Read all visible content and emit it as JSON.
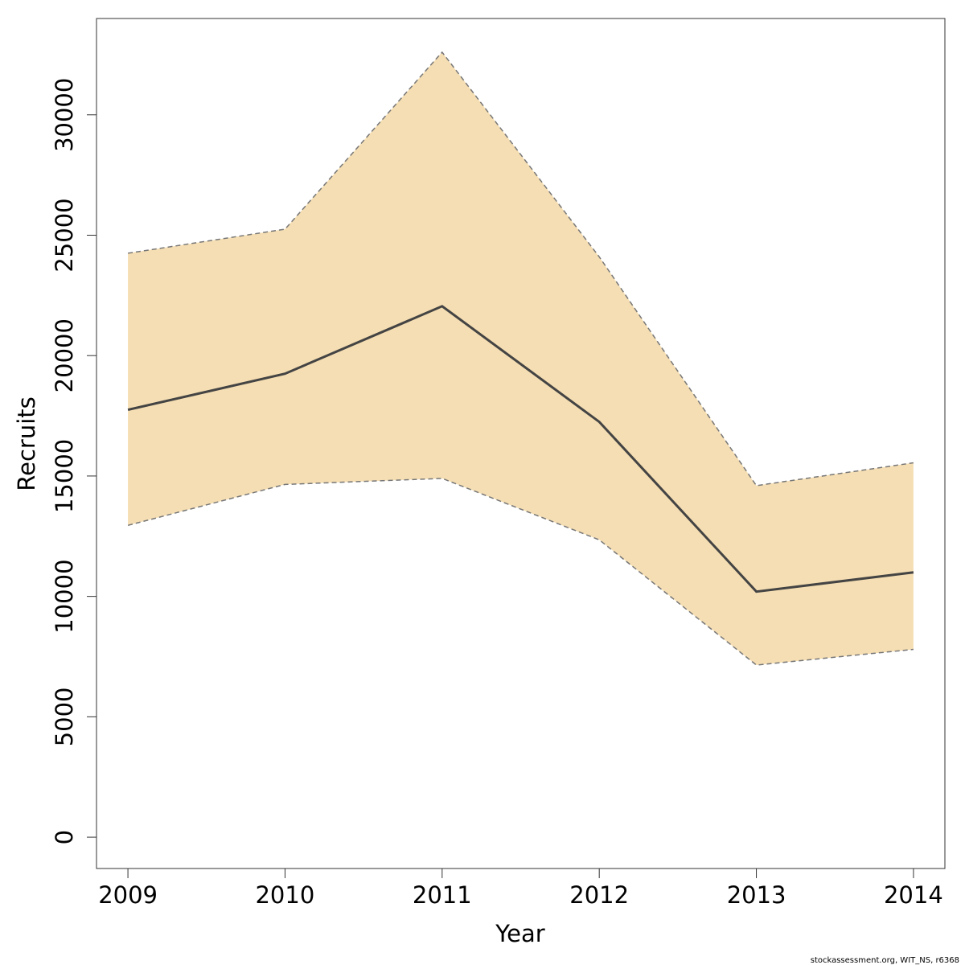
{
  "chart_data": {
    "type": "line",
    "title": "",
    "xlabel": "Year",
    "ylabel": "Recruits",
    "x": [
      2009,
      2010,
      2011,
      2012,
      2013,
      2014
    ],
    "series": [
      {
        "name": "",
        "values": [
          17750,
          19250,
          22050,
          17250,
          10200,
          11000
        ]
      }
    ],
    "band": {
      "lower": [
        12950,
        14650,
        14900,
        12350,
        7150,
        7800
      ],
      "upper": [
        24250,
        25250,
        32600,
        24100,
        14600,
        15550
      ]
    },
    "xlim": [
      2008.8,
      2014.2
    ],
    "ylim": [
      -1300,
      34000
    ],
    "xticks": [
      "2009",
      "2010",
      "2011",
      "2012",
      "2013",
      "2014"
    ],
    "yticks": [
      "0",
      "5000",
      "10000",
      "15000",
      "20000",
      "25000",
      "30000"
    ],
    "grid": false,
    "colors": {
      "band": "#f5deb3",
      "line": "#444444",
      "band_edge": "#777777"
    }
  },
  "credit": "stockassessment.org, WIT_NS, r6368"
}
